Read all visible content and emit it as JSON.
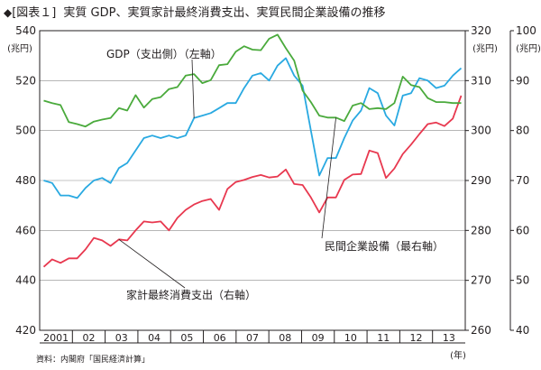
{
  "header": {
    "mark": "◆",
    "figure_tag": "[図表１]",
    "title": "実質 GDP、実質家計最終消費支出、実質民間企業設備の推移"
  },
  "source": "資料：内閣府「国民経済計算」",
  "chart_data": {
    "type": "line",
    "grid": true,
    "x_unit_label": "(年)",
    "x_tick_labels": [
      "2001",
      "02",
      "03",
      "04",
      "05",
      "06",
      "07",
      "08",
      "09",
      "10",
      "11",
      "12",
      "13"
    ],
    "x_start": 2001.0,
    "x_end": 2014.0,
    "axes": {
      "left": {
        "unit_label": "(兆円)",
        "ylim": [
          420,
          540
        ],
        "ticks": [
          420,
          440,
          460,
          480,
          500,
          520,
          540
        ]
      },
      "right": {
        "unit_label": "(兆円)",
        "ylim": [
          260,
          320
        ],
        "ticks": [
          260,
          270,
          280,
          290,
          300,
          310,
          320
        ]
      },
      "far_right": {
        "unit_label": "(兆円)",
        "ylim": [
          40,
          100
        ],
        "ticks": [
          40,
          50,
          60,
          70,
          80,
          90,
          100
        ]
      }
    },
    "series": [
      {
        "name": "GDP（支出側）（左軸）",
        "axis": "left",
        "color": "#29a9e1",
        "values": [
          480,
          479,
          474,
          474,
          473,
          477,
          480,
          481,
          479,
          485,
          487,
          492,
          497,
          498,
          497,
          498,
          497,
          498,
          505,
          506,
          507,
          509,
          511,
          511,
          517,
          522,
          523,
          520,
          526,
          529,
          522,
          518,
          500,
          482,
          489,
          489,
          497,
          504,
          508,
          517,
          515,
          506,
          502,
          514,
          515,
          521,
          520,
          517,
          518,
          522,
          525
        ]
      },
      {
        "name": "家計最終消費支出（右軸）",
        "axis": "right",
        "color": "#e8384f",
        "values": [
          272.7,
          274.2,
          273.5,
          274.4,
          274.4,
          276.2,
          278.5,
          278.0,
          276.9,
          278.2,
          278.0,
          280.0,
          281.8,
          281.6,
          281.8,
          280.0,
          282.5,
          284.1,
          285.2,
          285.9,
          286.3,
          284.1,
          288.3,
          289.7,
          290.1,
          290.7,
          291.1,
          290.6,
          290.8,
          292.2,
          289.3,
          289.1,
          286.6,
          283.6,
          286.6,
          286.6,
          290.1,
          291.2,
          291.3,
          296.0,
          295.5,
          290.5,
          292.4,
          295.3,
          297.2,
          299.3,
          301.3,
          301.6,
          300.9,
          302.4,
          307.0
        ]
      },
      {
        "name": "民間企業設備（最右軸）",
        "axis": "far_right",
        "color": "#4aaa3c",
        "values": [
          86.0,
          85.5,
          85.1,
          81.7,
          81.3,
          80.8,
          81.8,
          82.2,
          82.5,
          84.5,
          84.0,
          87.1,
          84.6,
          86.3,
          86.7,
          88.3,
          88.7,
          91.0,
          91.3,
          89.5,
          90.1,
          93.1,
          93.3,
          95.8,
          96.9,
          96.2,
          96.1,
          98.4,
          99.2,
          96.5,
          94.0,
          88.0,
          85.7,
          83.0,
          82.6,
          82.6,
          81.9,
          85.0,
          85.5,
          84.3,
          84.5,
          84.3,
          85.5,
          90.8,
          89.1,
          88.7,
          86.5,
          85.7,
          85.7,
          85.5,
          85.5
        ]
      }
    ],
    "annotations": [
      {
        "text": "GDP（支出側）（左軸）",
        "series": 0
      },
      {
        "text": "民間企業設備（最右軸）",
        "series": 2
      },
      {
        "text": "家計最終消費支出（右軸）",
        "series": 1
      }
    ]
  }
}
